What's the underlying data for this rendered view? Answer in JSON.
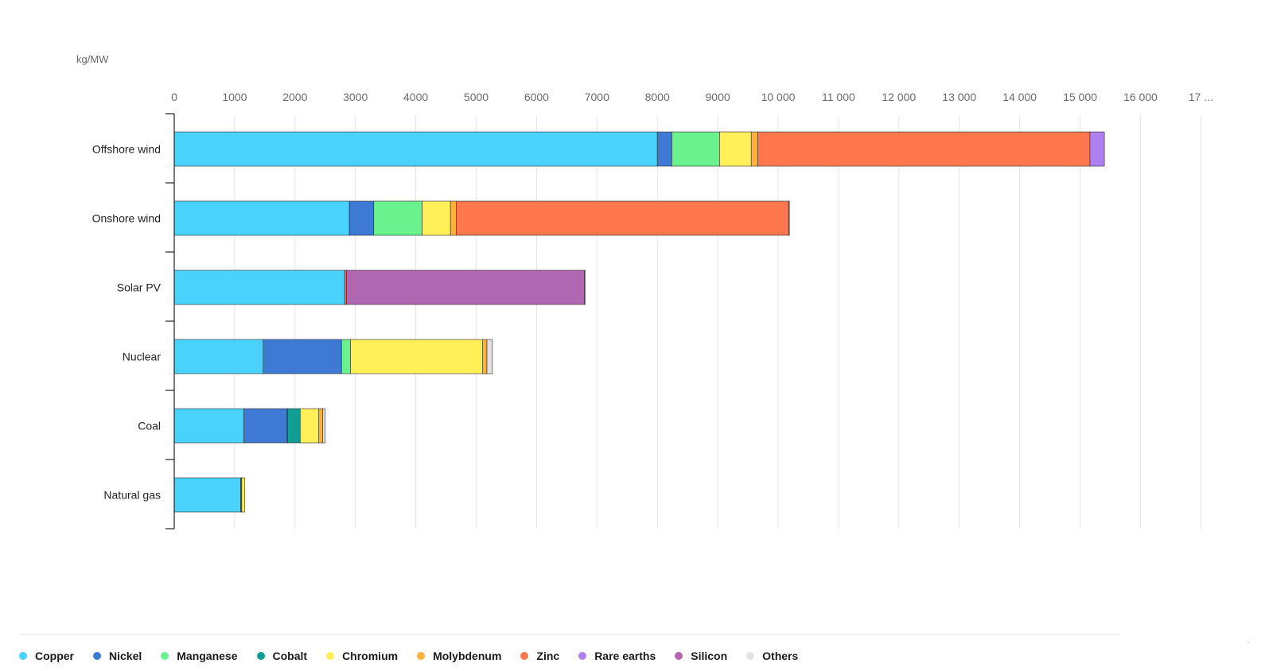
{
  "chart_data": {
    "type": "bar",
    "orientation": "horizontal",
    "stacked": true,
    "unit_label": "kg/MW",
    "x_ticks": [
      "0",
      "1000",
      "2000",
      "3000",
      "4000",
      "5000",
      "6000",
      "7000",
      "8000",
      "9000",
      "10 000",
      "11 000",
      "12 000",
      "13 000",
      "14 000",
      "15 000",
      "16 000",
      "17 ..."
    ],
    "xlim": [
      0,
      17000
    ],
    "grid": true,
    "legend_position": "bottom",
    "categories": [
      "Offshore wind",
      "Onshore wind",
      "Solar PV",
      "Nuclear",
      "Coal",
      "Natural gas"
    ],
    "series": [
      {
        "name": "Copper",
        "color": "#49d3fc",
        "values": [
          8000,
          2900,
          2822,
          1473,
          1150,
          1100
        ]
      },
      {
        "name": "Nickel",
        "color": "#3e7ad3",
        "values": [
          240,
          404,
          1,
          1297,
          721,
          16
        ]
      },
      {
        "name": "Manganese",
        "color": "#6af28e",
        "values": [
          790,
          800,
          0,
          148,
          5,
          0
        ]
      },
      {
        "name": "Cobalt",
        "color": "#119c95",
        "values": [
          0,
          0,
          0,
          0,
          210,
          2
        ]
      },
      {
        "name": "Chromium",
        "color": "#fff05a",
        "values": [
          525,
          470,
          0,
          2190,
          308,
          48
        ]
      },
      {
        "name": "Molybdenum",
        "color": "#fbb13c",
        "values": [
          109,
          99,
          0,
          70,
          66,
          0
        ]
      },
      {
        "name": "Zinc",
        "color": "#ff774d",
        "values": [
          5500,
          5500,
          30,
          0,
          0,
          0
        ]
      },
      {
        "name": "Rare earths",
        "color": "#ad7ff0",
        "values": [
          239,
          14,
          0,
          0,
          0,
          0
        ]
      },
      {
        "name": "Silicon",
        "color": "#b067b2",
        "values": [
          0,
          0,
          3940,
          0,
          0,
          0
        ]
      },
      {
        "name": "Others",
        "color": "#e2e2e2",
        "values": [
          0,
          0,
          13,
          90,
          40,
          0
        ]
      }
    ]
  },
  "legend_corner_mark": "’"
}
